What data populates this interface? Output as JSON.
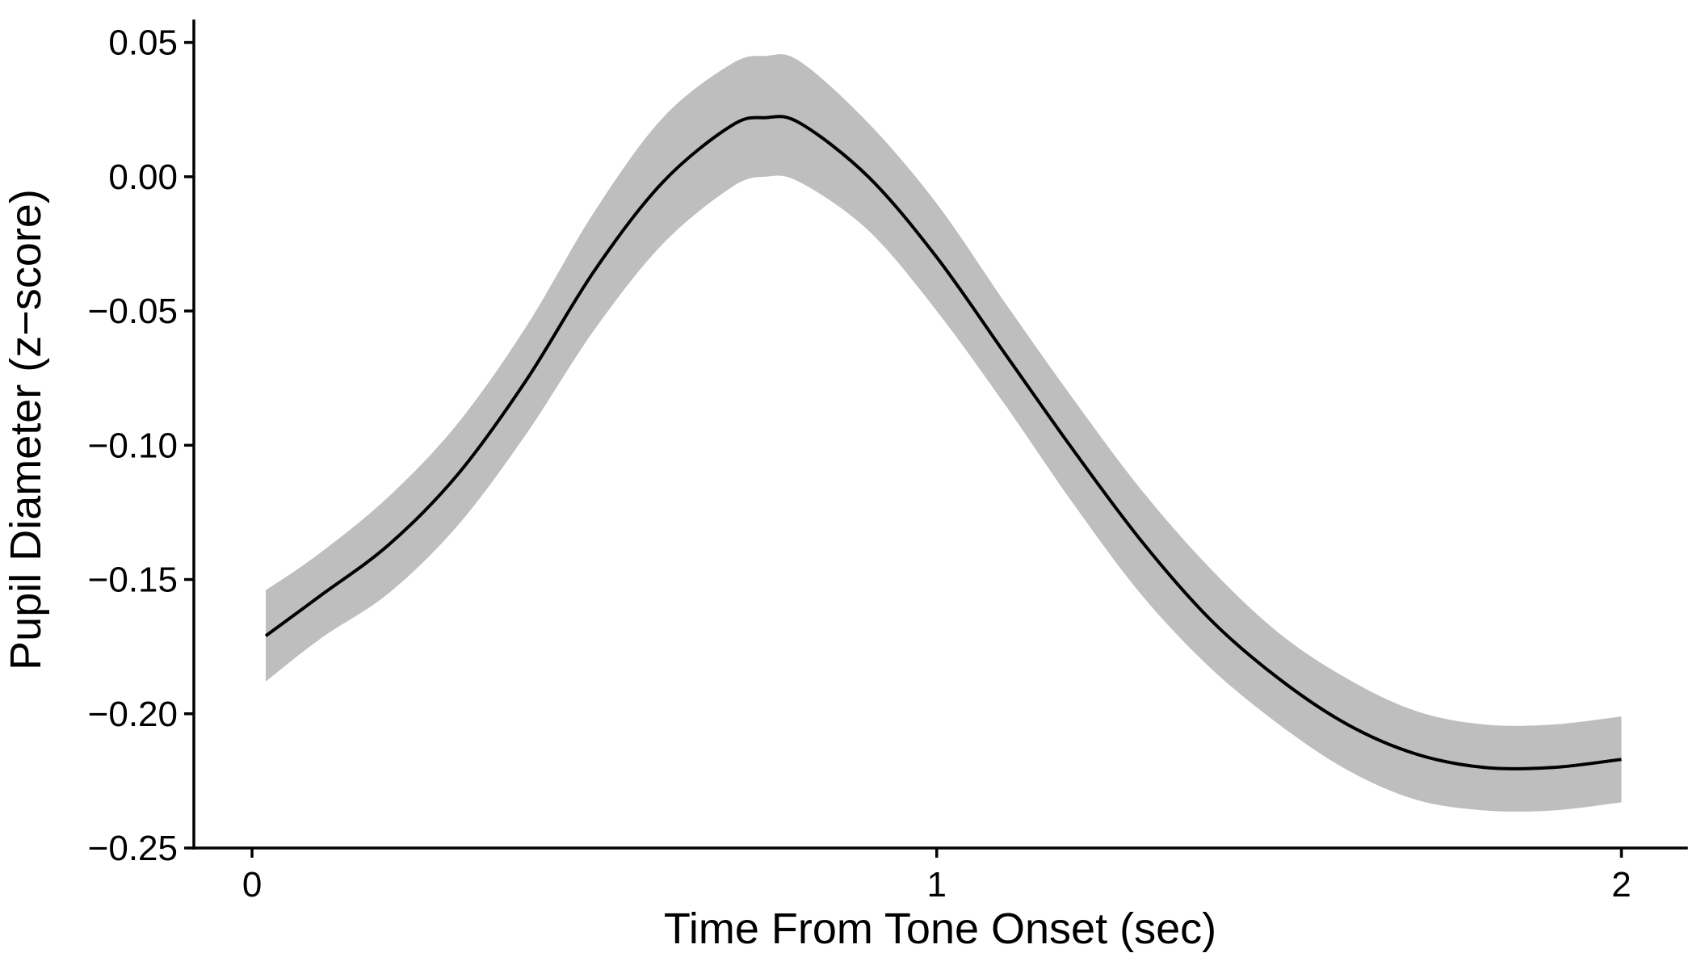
{
  "chart_data": {
    "type": "line",
    "xlabel": "Time From Tone Onset (sec)",
    "ylabel": "Pupil Diameter (z−score)",
    "xlim": [
      -0.085,
      2.095
    ],
    "ylim": [
      -0.25,
      0.058
    ],
    "x_ticks": [
      {
        "value": 0,
        "label": "0"
      },
      {
        "value": 1,
        "label": "1"
      },
      {
        "value": 2,
        "label": "2"
      }
    ],
    "y_ticks": [
      {
        "value": 0.05,
        "label": "0.05"
      },
      {
        "value": 0.0,
        "label": "0.00"
      },
      {
        "value": -0.05,
        "label": "−0.05"
      },
      {
        "value": -0.1,
        "label": "−0.10"
      },
      {
        "value": -0.15,
        "label": "−0.15"
      },
      {
        "value": -0.2,
        "label": "−0.20"
      },
      {
        "value": -0.25,
        "label": "−0.25"
      }
    ],
    "grid": false,
    "band_color": "#bebebe",
    "line_color": "#000000",
    "series": [
      {
        "x": [
          0.02,
          0.1,
          0.2,
          0.3,
          0.4,
          0.5,
          0.6,
          0.7,
          0.75,
          0.8,
          0.9,
          1.0,
          1.1,
          1.2,
          1.3,
          1.4,
          1.5,
          1.6,
          1.7,
          1.8,
          1.9,
          2.0
        ],
        "y": [
          -0.171,
          -0.156,
          -0.137,
          -0.111,
          -0.076,
          -0.035,
          -0.002,
          0.019,
          0.022,
          0.02,
          0.0,
          -0.03,
          -0.066,
          -0.102,
          -0.136,
          -0.165,
          -0.187,
          -0.204,
          -0.215,
          -0.22,
          -0.22,
          -0.217
        ],
        "lower": [
          -0.188,
          -0.172,
          -0.155,
          -0.13,
          -0.096,
          -0.057,
          -0.025,
          -0.004,
          0.0,
          -0.002,
          -0.02,
          -0.05,
          -0.085,
          -0.122,
          -0.156,
          -0.183,
          -0.204,
          -0.221,
          -0.232,
          -0.236,
          -0.236,
          -0.233
        ],
        "upper": [
          -0.154,
          -0.14,
          -0.119,
          -0.092,
          -0.056,
          -0.013,
          0.022,
          0.042,
          0.045,
          0.043,
          0.02,
          -0.01,
          -0.047,
          -0.083,
          -0.117,
          -0.146,
          -0.17,
          -0.187,
          -0.199,
          -0.204,
          -0.204,
          -0.201
        ]
      }
    ]
  }
}
